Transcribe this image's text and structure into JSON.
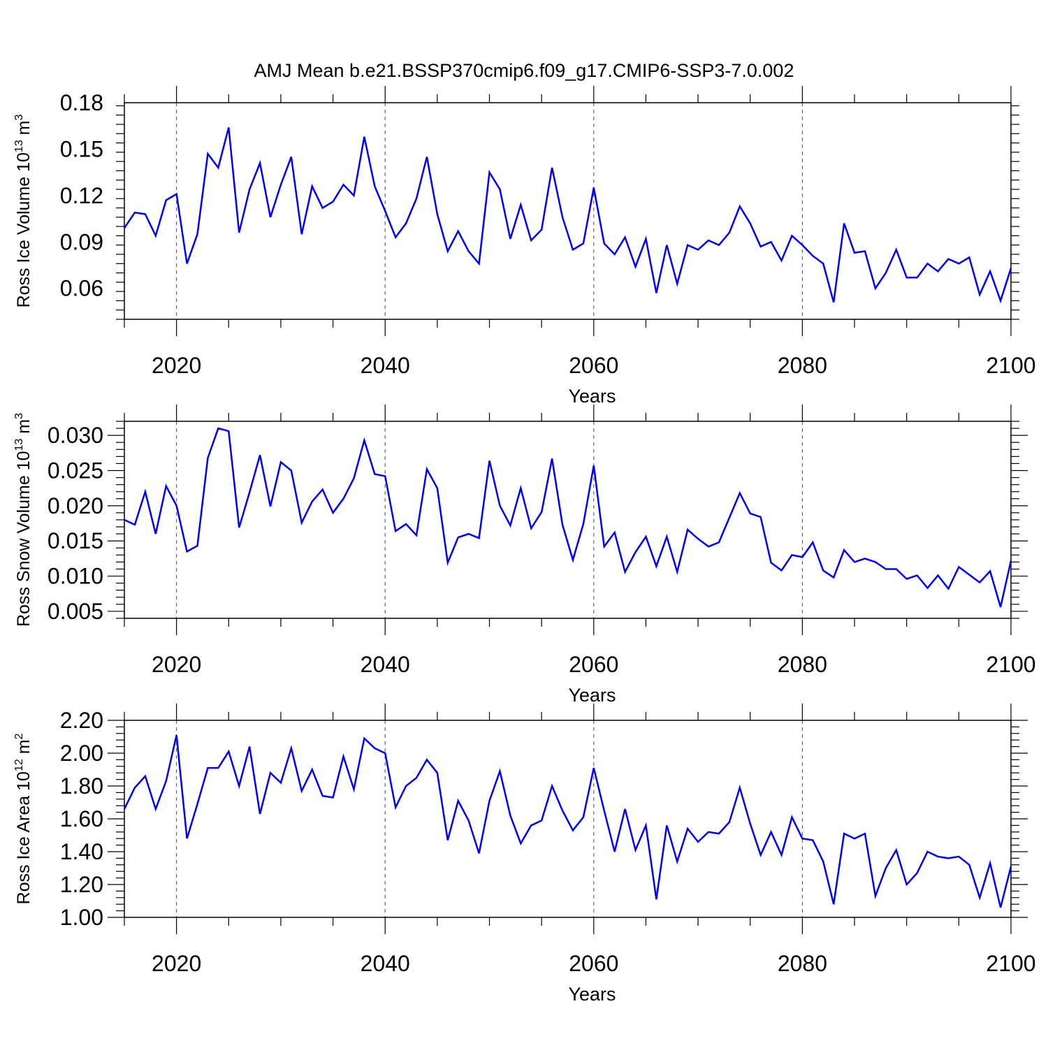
{
  "title": "AMJ Mean b.e21.BSSP370cmip6.f09_g17.CMIP6-SSP3-7.0.002",
  "chart_data": [
    {
      "type": "line",
      "ylabel": "Ross Ice Volume 10",
      "ylabel_sup": "13",
      "ylabel_unit": " m",
      "ylabel_unit_sup": "3",
      "xlabel": "Years",
      "xlim": [
        2015,
        2100
      ],
      "ylim": [
        0.04,
        0.18
      ],
      "xticks": [
        "2020",
        "2040",
        "2060",
        "2080",
        "2100"
      ],
      "yticks": [
        "0.06",
        "0.09",
        "0.12",
        "0.15",
        "0.18"
      ],
      "color": "#0000ff",
      "x_start": 2015,
      "values": [
        0.099,
        0.109,
        0.108,
        0.094,
        0.117,
        0.121,
        0.076,
        0.095,
        0.147,
        0.138,
        0.164,
        0.096,
        0.124,
        0.141,
        0.106,
        0.127,
        0.145,
        0.095,
        0.126,
        0.112,
        0.116,
        0.127,
        0.12,
        0.158,
        0.126,
        0.11,
        0.093,
        0.102,
        0.118,
        0.145,
        0.108,
        0.084,
        0.097,
        0.084,
        0.076,
        0.135,
        0.124,
        0.092,
        0.114,
        0.091,
        0.098,
        0.138,
        0.106,
        0.085,
        0.089,
        0.125,
        0.089,
        0.082,
        0.093,
        0.074,
        0.092,
        0.057,
        0.088,
        0.063,
        0.088,
        0.085,
        0.091,
        0.088,
        0.096,
        0.113,
        0.102,
        0.087,
        0.09,
        0.078,
        0.094,
        0.088,
        0.081,
        0.076,
        0.051,
        0.102,
        0.083,
        0.084,
        0.06,
        0.07,
        0.085,
        0.067,
        0.067,
        0.076,
        0.071,
        0.079,
        0.076,
        0.08,
        0.056,
        0.071,
        0.052,
        0.073
      ]
    },
    {
      "type": "line",
      "ylabel": "Ross Snow Volume 10",
      "ylabel_sup": "13",
      "ylabel_unit": " m",
      "ylabel_unit_sup": "3",
      "xlabel": "Years",
      "xlim": [
        2015,
        2100
      ],
      "ylim": [
        0.004,
        0.032
      ],
      "xticks": [
        "2020",
        "2040",
        "2060",
        "2080",
        "2100"
      ],
      "yticks": [
        "0.005",
        "0.010",
        "0.015",
        "0.020",
        "0.025",
        "0.030"
      ],
      "color": "#0000ff",
      "x_start": 2015,
      "values": [
        0.018,
        0.0173,
        0.022,
        0.016,
        0.0228,
        0.02,
        0.0135,
        0.0143,
        0.0268,
        0.031,
        0.0306,
        0.0169,
        0.0219,
        0.0272,
        0.0199,
        0.0262,
        0.025,
        0.0176,
        0.0206,
        0.0223,
        0.019,
        0.021,
        0.0239,
        0.0293,
        0.0245,
        0.0242,
        0.0164,
        0.0174,
        0.0158,
        0.0252,
        0.0225,
        0.0119,
        0.0155,
        0.016,
        0.0154,
        0.0264,
        0.02,
        0.0172,
        0.0225,
        0.0168,
        0.0191,
        0.0267,
        0.0173,
        0.0123,
        0.0174,
        0.0257,
        0.0142,
        0.0162,
        0.0106,
        0.0134,
        0.0156,
        0.0114,
        0.0156,
        0.0106,
        0.0166,
        0.0153,
        0.0142,
        0.0148,
        0.0183,
        0.0218,
        0.0189,
        0.0184,
        0.0119,
        0.0108,
        0.013,
        0.0127,
        0.0148,
        0.0108,
        0.0098,
        0.0137,
        0.012,
        0.0125,
        0.012,
        0.011,
        0.011,
        0.0096,
        0.0101,
        0.0083,
        0.0101,
        0.0082,
        0.0113,
        0.0102,
        0.0091,
        0.0107,
        0.0056,
        0.0122
      ]
    },
    {
      "type": "line",
      "ylabel": "Ross Ice Area 10",
      "ylabel_sup": "12",
      "ylabel_unit": " m",
      "ylabel_unit_sup": "2",
      "xlabel": "Years",
      "xlim": [
        2015,
        2100
      ],
      "ylim": [
        1.0,
        2.2
      ],
      "xticks": [
        "2020",
        "2040",
        "2060",
        "2080",
        "2100"
      ],
      "yticks": [
        "1.00",
        "1.20",
        "1.40",
        "1.60",
        "1.80",
        "2.00",
        "2.20"
      ],
      "color": "#0000ff",
      "x_start": 2015,
      "values": [
        1.66,
        1.79,
        1.86,
        1.66,
        1.83,
        2.11,
        1.48,
        1.69,
        1.91,
        1.91,
        2.01,
        1.8,
        2.04,
        1.63,
        1.88,
        1.82,
        2.03,
        1.77,
        1.9,
        1.74,
        1.73,
        1.98,
        1.78,
        2.09,
        2.03,
        2.0,
        1.67,
        1.8,
        1.85,
        1.96,
        1.88,
        1.47,
        1.71,
        1.59,
        1.39,
        1.71,
        1.89,
        1.62,
        1.45,
        1.56,
        1.59,
        1.8,
        1.65,
        1.53,
        1.61,
        1.91,
        1.65,
        1.4,
        1.66,
        1.41,
        1.56,
        1.11,
        1.56,
        1.34,
        1.54,
        1.46,
        1.52,
        1.51,
        1.58,
        1.79,
        1.57,
        1.38,
        1.52,
        1.38,
        1.61,
        1.48,
        1.47,
        1.34,
        1.08,
        1.51,
        1.48,
        1.51,
        1.13,
        1.3,
        1.41,
        1.2,
        1.27,
        1.4,
        1.37,
        1.36,
        1.37,
        1.32,
        1.12,
        1.33,
        1.06,
        1.31
      ]
    }
  ]
}
